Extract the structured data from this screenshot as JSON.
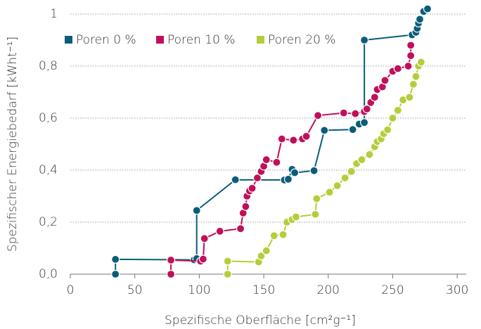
{
  "chart_data": {
    "type": "line",
    "xlabel": "Spezifische Oberfläche [cm²g⁻¹]",
    "ylabel": "Spezifischer Energiebedarf [kWht⁻¹]",
    "xlim": [
      0,
      307
    ],
    "xticks": [
      0,
      50,
      100,
      150,
      200,
      250,
      300
    ],
    "ylim": [
      0,
      1
    ],
    "yticks": [
      {
        "value": 0,
        "label": "0,0"
      },
      {
        "value": 0.2,
        "label": "0,2"
      },
      {
        "value": 0.4,
        "label": "0,4"
      },
      {
        "value": 0.6,
        "label": "0,6"
      },
      {
        "value": 0.8,
        "label": "0,8"
      },
      1
    ],
    "grid": true,
    "legend": "top-left",
    "series": [
      {
        "name": "Poren 0 %",
        "color": "#0b5d7a",
        "x": [
          35,
          35,
          96,
          98,
          98,
          128,
          166,
          169,
          172,
          174,
          189,
          197,
          219,
          224,
          228,
          228,
          265,
          268,
          269,
          270,
          271,
          274,
          277
        ],
        "values": [
          0,
          0.057,
          0.055,
          0.06,
          0.245,
          0.363,
          0.362,
          0.365,
          0.403,
          0.39,
          0.398,
          0.553,
          0.556,
          0.577,
          0.583,
          0.9,
          0.92,
          0.93,
          0.945,
          0.965,
          0.98,
          1.01,
          1.02
        ]
      },
      {
        "name": "Poren 10 %",
        "color": "#c0105a",
        "x": [
          78,
          78,
          101,
          103,
          104,
          116,
          132,
          134,
          136,
          137,
          139,
          141,
          145,
          148,
          150,
          152,
          160,
          164,
          173,
          180,
          183,
          192,
          212,
          221,
          228,
          230,
          233,
          236,
          238,
          242,
          244,
          250,
          254,
          262,
          264,
          264
        ],
        "values": [
          0,
          0.054,
          0.05,
          0.058,
          0.137,
          0.165,
          0.175,
          0.235,
          0.26,
          0.3,
          0.32,
          0.33,
          0.37,
          0.395,
          0.415,
          0.44,
          0.43,
          0.52,
          0.515,
          0.52,
          0.53,
          0.61,
          0.62,
          0.617,
          0.625,
          0.635,
          0.66,
          0.68,
          0.71,
          0.72,
          0.745,
          0.78,
          0.79,
          0.8,
          0.84,
          0.88
        ]
      },
      {
        "name": "Poren 20 %",
        "color": "#b5cd3a",
        "x": [
          122,
          122,
          146,
          148,
          152,
          158,
          165,
          168,
          172,
          175,
          190,
          191,
          201,
          207,
          213,
          218,
          222,
          226,
          232,
          236,
          238,
          241,
          243,
          246,
          250,
          254,
          258,
          263,
          266,
          268,
          270,
          272
        ],
        "values": [
          0,
          0.05,
          0.047,
          0.07,
          0.09,
          0.148,
          0.152,
          0.2,
          0.21,
          0.22,
          0.23,
          0.29,
          0.315,
          0.34,
          0.37,
          0.395,
          0.425,
          0.44,
          0.46,
          0.49,
          0.51,
          0.52,
          0.54,
          0.555,
          0.6,
          0.63,
          0.67,
          0.68,
          0.73,
          0.76,
          0.8,
          0.815
        ]
      }
    ]
  }
}
